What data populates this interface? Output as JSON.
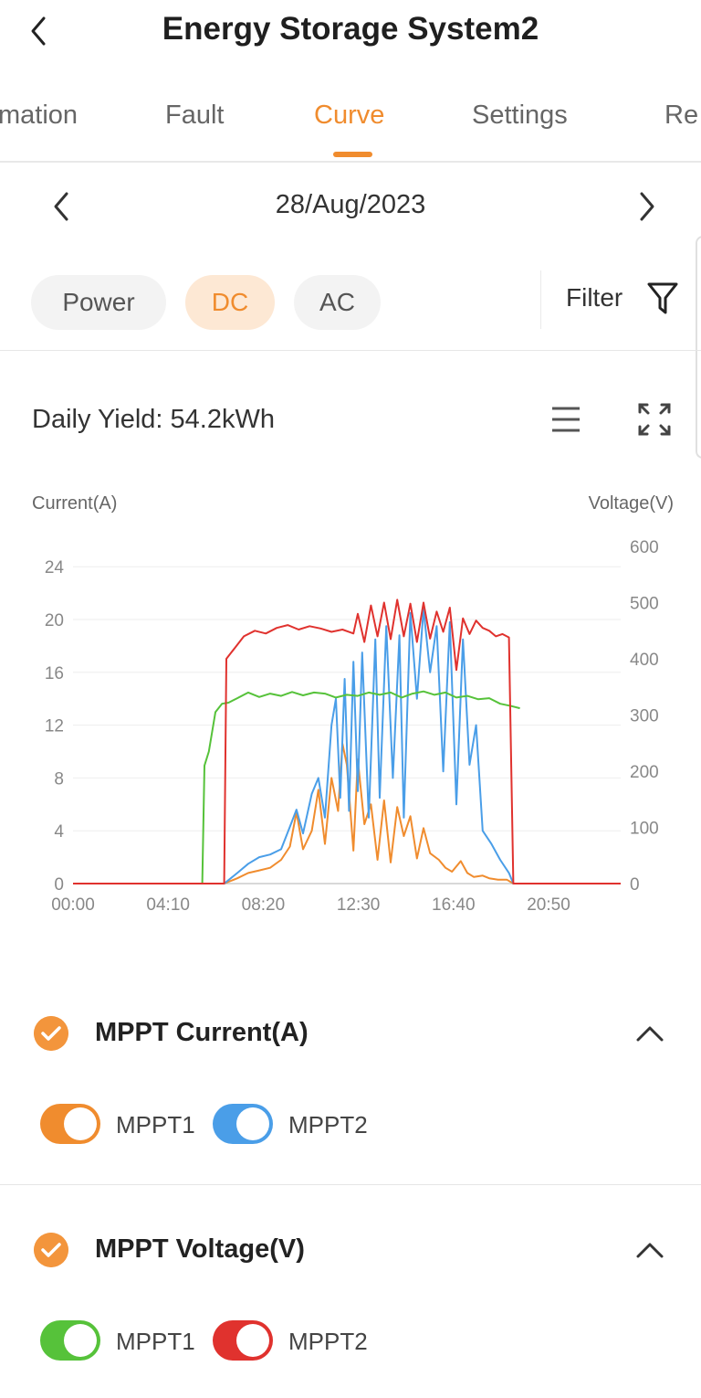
{
  "header": {
    "title": "Energy Storage System2"
  },
  "tabs": [
    {
      "label": "mation",
      "active": false
    },
    {
      "label": "Fault",
      "active": false
    },
    {
      "label": "Curve",
      "active": true
    },
    {
      "label": "Settings",
      "active": false
    },
    {
      "label": "Re",
      "active": false
    }
  ],
  "date": {
    "value": "28/Aug/2023"
  },
  "pills": [
    {
      "label": "Power",
      "active": false
    },
    {
      "label": "DC",
      "active": true
    },
    {
      "label": "AC",
      "active": false
    }
  ],
  "filter": {
    "label": "Filter"
  },
  "daily_yield": "Daily Yield: 54.2kWh",
  "colors": {
    "accent": "#f08c2e",
    "mppt1_current": "#f08c2e",
    "mppt2_current": "#4a9ee8",
    "mppt1_voltage": "#56c23a",
    "mppt2_voltage": "#e0322e"
  },
  "chart_data": {
    "type": "line",
    "ylabel_left": "Current(A)",
    "ylabel_right": "Voltage(V)",
    "x_ticks": [
      "00:00",
      "04:10",
      "08:20",
      "12:30",
      "16:40",
      "20:50"
    ],
    "y_left_ticks": [
      "0",
      "4",
      "8",
      "12",
      "16",
      "20",
      "24"
    ],
    "y_right_ticks": [
      "0",
      "100",
      "200",
      "300",
      "400",
      "500",
      "600"
    ],
    "ylim_left": [
      0,
      25.6
    ],
    "ylim_right": [
      0,
      600
    ],
    "x_range_hours": [
      0,
      25
    ],
    "series": [
      {
        "name": "MPPT1 Current(A)",
        "axis": "left",
        "color": "#f08c2e",
        "x": [
          0,
          6.9,
          7.5,
          8.0,
          8.5,
          9.0,
          9.5,
          9.9,
          10.2,
          10.5,
          10.9,
          11.2,
          11.5,
          11.8,
          12.1,
          12.3,
          12.5,
          12.8,
          13.0,
          13.3,
          13.6,
          13.9,
          14.2,
          14.5,
          14.8,
          15.1,
          15.4,
          15.7,
          16.0,
          16.3,
          16.7,
          17.0,
          17.3,
          17.7,
          18.0,
          18.3,
          18.7,
          19.0,
          19.4,
          19.8,
          20.1,
          21.0,
          25
        ],
        "y": [
          0,
          0,
          0.4,
          0.8,
          1.0,
          1.2,
          1.8,
          2.8,
          5.4,
          2.6,
          4.0,
          7.1,
          3.0,
          8.0,
          5.5,
          10.6,
          9.0,
          2.5,
          9.4,
          4.5,
          6.0,
          1.8,
          6.3,
          1.6,
          5.8,
          3.6,
          5.1,
          1.9,
          4.2,
          2.3,
          1.8,
          1.2,
          0.9,
          1.7,
          0.8,
          0.5,
          0.6,
          0.4,
          0.3,
          0.3,
          0,
          0,
          0
        ]
      },
      {
        "name": "MPPT2 Current(A)",
        "axis": "left",
        "color": "#4a9ee8",
        "x": [
          0,
          6.9,
          7.5,
          8.0,
          8.5,
          9.0,
          9.5,
          9.9,
          10.2,
          10.5,
          10.9,
          11.2,
          11.5,
          11.8,
          12.0,
          12.2,
          12.4,
          12.6,
          12.8,
          13.0,
          13.2,
          13.5,
          13.8,
          14.0,
          14.3,
          14.6,
          14.9,
          15.1,
          15.4,
          15.7,
          16.0,
          16.3,
          16.6,
          16.9,
          17.2,
          17.5,
          17.8,
          18.1,
          18.4,
          18.7,
          19.1,
          19.5,
          19.9,
          20.1,
          21.0,
          25
        ],
        "y": [
          0,
          0,
          0.8,
          1.5,
          2.0,
          2.2,
          2.6,
          4.3,
          5.6,
          3.8,
          6.8,
          8.0,
          5.0,
          12.0,
          14.0,
          6.5,
          15.5,
          5.5,
          16.8,
          7.0,
          17.5,
          5.0,
          18.5,
          6.5,
          19.5,
          8.0,
          18.8,
          5.0,
          20.5,
          14.0,
          20.8,
          16.0,
          19.5,
          8.5,
          19.8,
          6.0,
          18.5,
          9.0,
          12.0,
          4.0,
          3.0,
          1.8,
          0.8,
          0,
          0,
          0
        ]
      },
      {
        "name": "MPPT1 Voltage(V)",
        "axis": "right",
        "color": "#56c23a",
        "x": [
          0,
          5.9,
          6.0,
          6.2,
          6.5,
          6.8,
          7.1,
          7.5,
          8.0,
          8.5,
          9.0,
          9.5,
          10.0,
          10.5,
          11.0,
          11.5,
          12.0,
          12.5,
          13.0,
          13.5,
          14.0,
          14.5,
          15.0,
          15.5,
          16.0,
          16.5,
          17.0,
          17.5,
          18.0,
          18.5,
          19.0,
          19.5,
          20.0,
          20.4
        ],
        "y": [
          0,
          0,
          210,
          235,
          305,
          320,
          322,
          330,
          340,
          332,
          338,
          334,
          341,
          335,
          340,
          338,
          331,
          336,
          334,
          340,
          336,
          340,
          331,
          338,
          342,
          336,
          340,
          331,
          334,
          328,
          330,
          320,
          316,
          312
        ]
      },
      {
        "name": "MPPT2 Voltage(V)",
        "axis": "right",
        "color": "#e0322e",
        "x": [
          0,
          6.9,
          7.0,
          7.4,
          7.8,
          8.3,
          8.8,
          9.3,
          9.8,
          10.3,
          10.8,
          11.3,
          11.8,
          12.3,
          12.8,
          13.0,
          13.3,
          13.6,
          13.9,
          14.2,
          14.5,
          14.8,
          15.1,
          15.4,
          15.7,
          16.0,
          16.3,
          16.6,
          16.9,
          17.2,
          17.5,
          17.8,
          18.1,
          18.4,
          18.7,
          19.0,
          19.3,
          19.6,
          19.9,
          20.1,
          20.2,
          25
        ],
        "y": [
          0,
          0,
          400,
          420,
          440,
          450,
          445,
          455,
          460,
          452,
          458,
          454,
          448,
          452,
          445,
          480,
          430,
          495,
          440,
          500,
          435,
          505,
          440,
          498,
          430,
          500,
          436,
          484,
          448,
          491,
          380,
          472,
          444,
          468,
          455,
          450,
          440,
          444,
          438,
          0,
          0,
          0
        ]
      }
    ]
  },
  "sections": [
    {
      "title": "MPPT Current(A)",
      "toggles": [
        {
          "label": "MPPT1",
          "color": "#f08c2e",
          "on": true
        },
        {
          "label": "MPPT2",
          "color": "#4a9ee8",
          "on": true
        }
      ]
    },
    {
      "title": "MPPT Voltage(V)",
      "toggles": [
        {
          "label": "MPPT1",
          "color": "#56c23a",
          "on": true
        },
        {
          "label": "MPPT2",
          "color": "#e0322e",
          "on": true
        }
      ]
    }
  ]
}
